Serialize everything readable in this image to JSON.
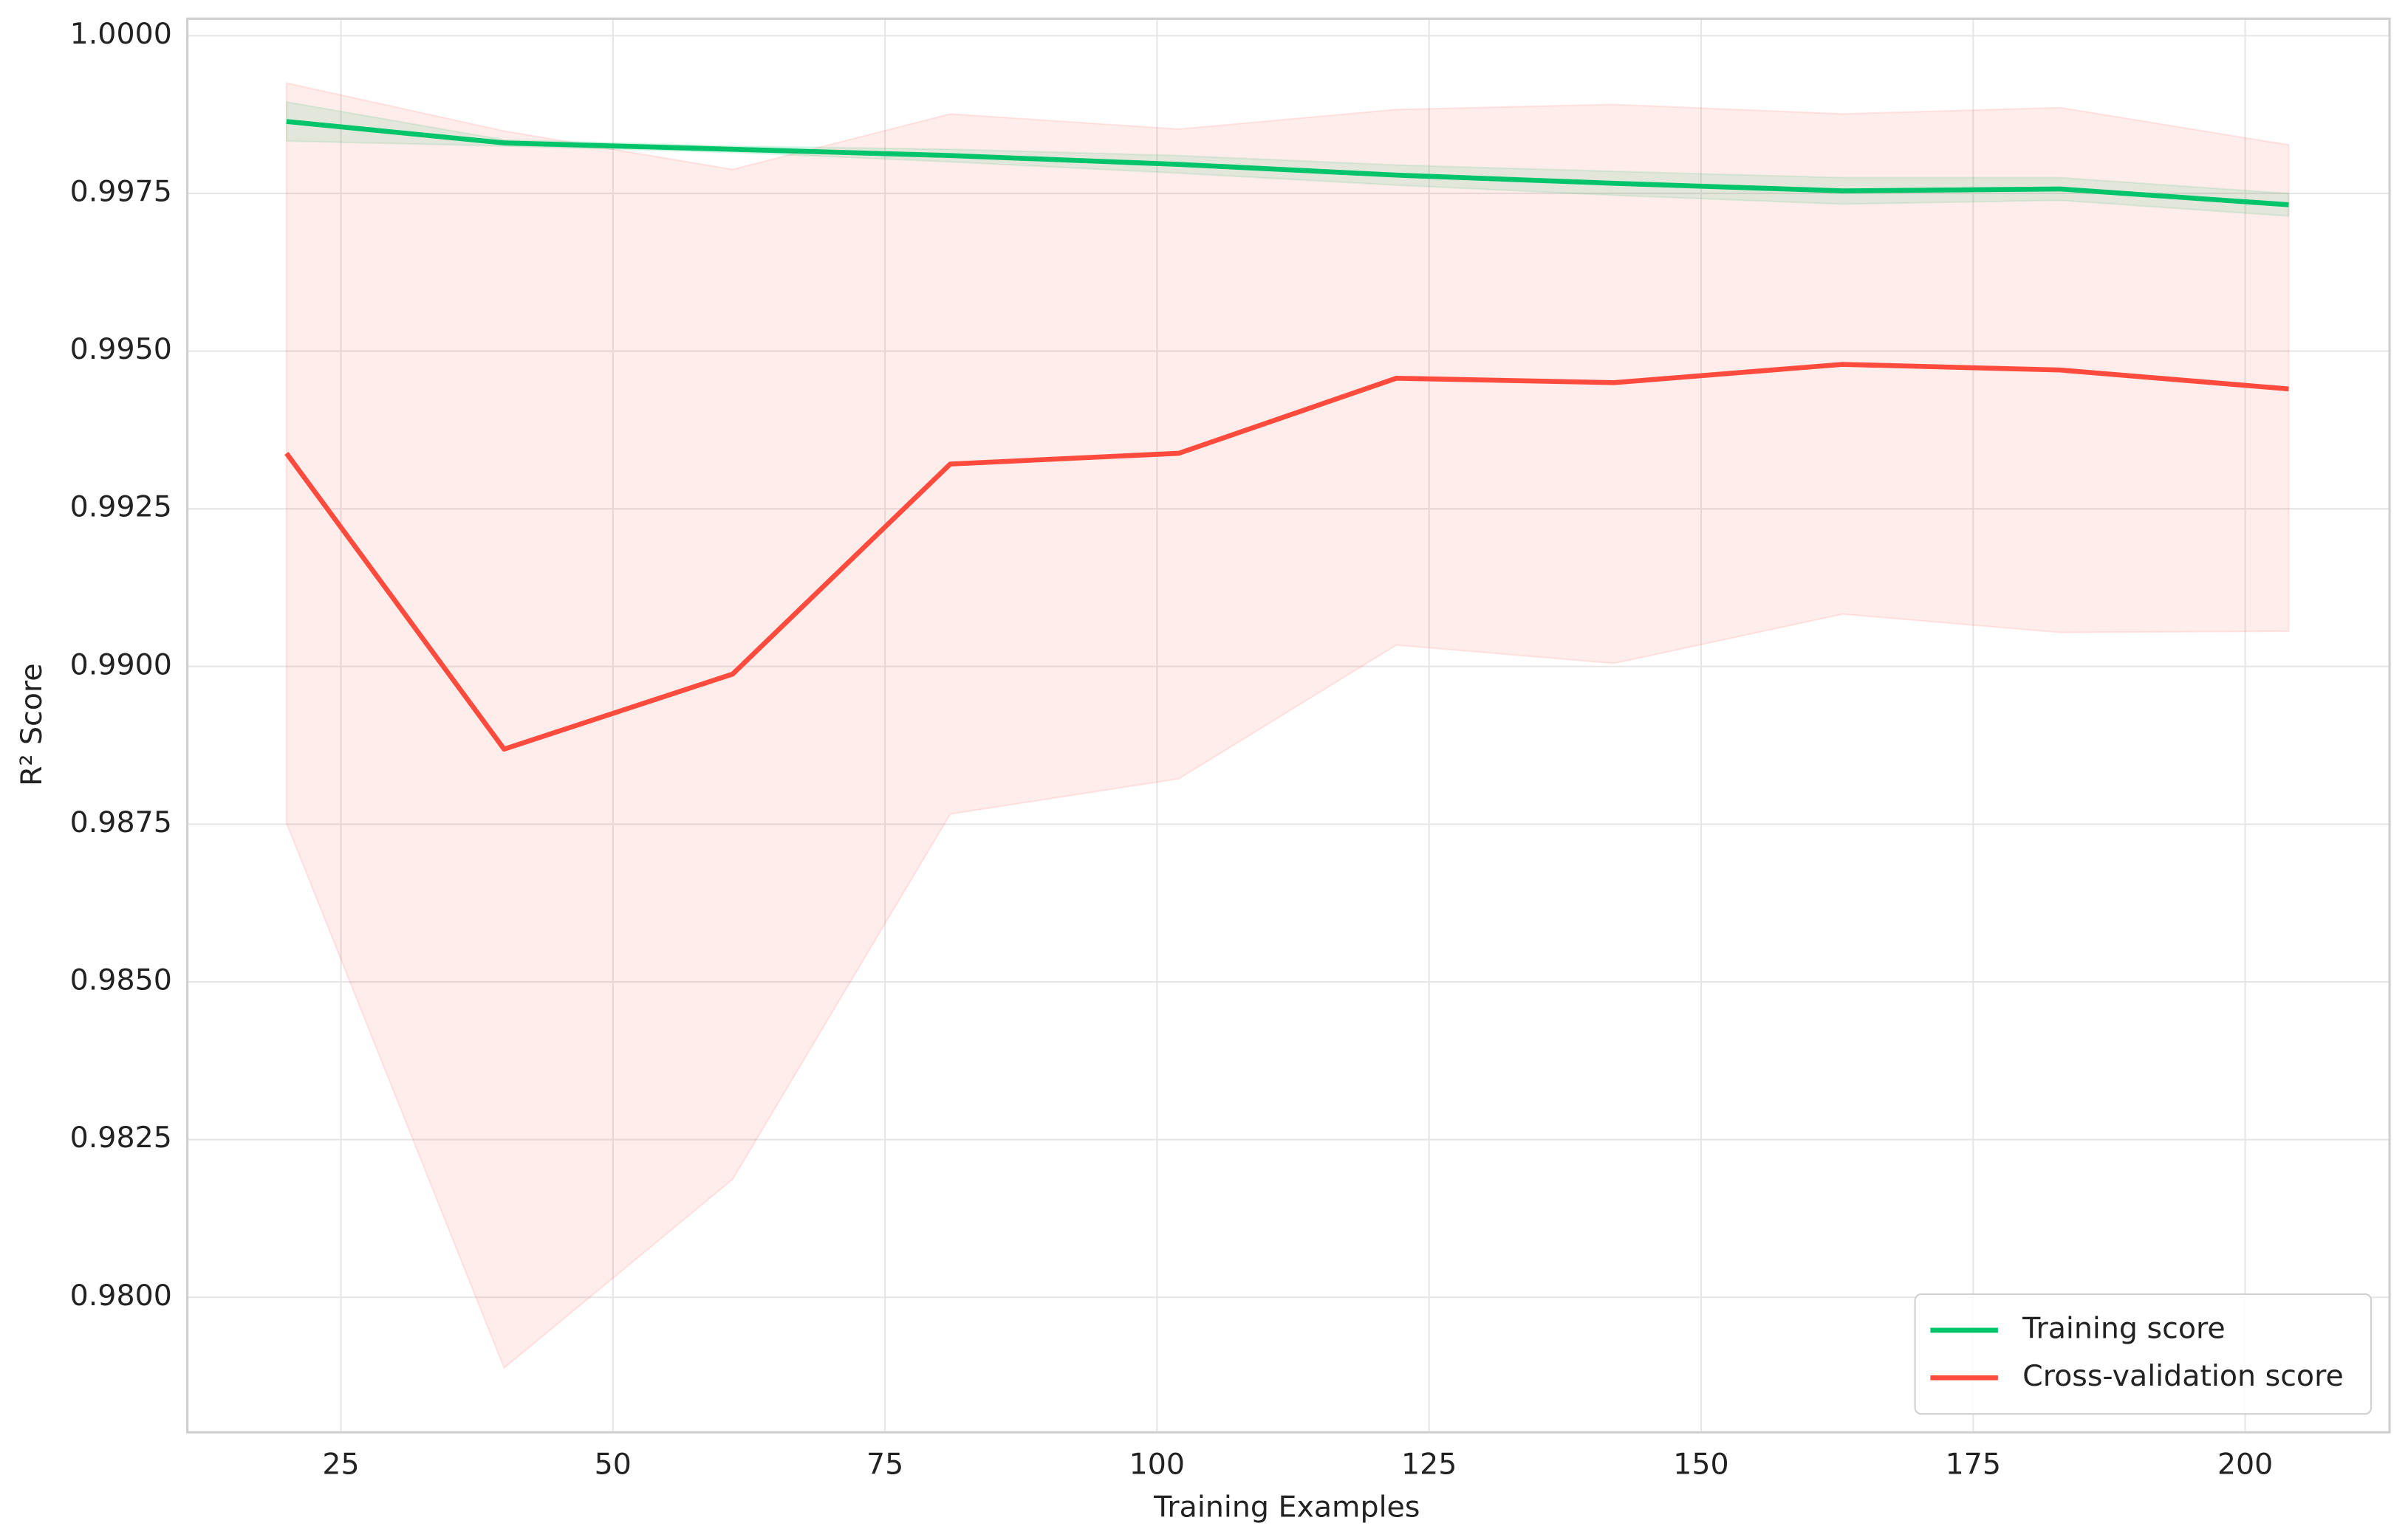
{
  "chart_data": {
    "type": "line",
    "xlabel": "Training Examples",
    "ylabel": "R² Score",
    "x": [
      20,
      40,
      61,
      81,
      102,
      122,
      142,
      163,
      183,
      204
    ],
    "series": [
      {
        "name": "Training score",
        "color": "#00c46a",
        "values": [
          0.99864,
          0.9983,
          0.9982,
          0.9981,
          0.99796,
          0.99779,
          0.99766,
          0.99754,
          0.99757,
          0.99732
        ],
        "upper": [
          0.99895,
          0.99835,
          0.99825,
          0.9982,
          0.9981,
          0.99795,
          0.99785,
          0.99775,
          0.99775,
          0.9975
        ],
        "lower": [
          0.99833,
          0.99825,
          0.99815,
          0.998,
          0.99782,
          0.99763,
          0.99747,
          0.99733,
          0.99739,
          0.99714
        ]
      },
      {
        "name": "Cross-validation score",
        "color": "#ff4b3e",
        "values": [
          0.99338,
          0.98869,
          0.98988,
          0.99321,
          0.99338,
          0.99457,
          0.9945,
          0.99479,
          0.9947,
          0.9944
        ],
        "upper": [
          0.99925,
          0.99849,
          0.99788,
          0.99876,
          0.99852,
          0.99883,
          0.99891,
          0.99876,
          0.99886,
          0.99827
        ],
        "lower": [
          0.98752,
          0.97888,
          0.98187,
          0.98766,
          0.98822,
          0.99034,
          0.99005,
          0.99083,
          0.99054,
          0.99056
        ]
      }
    ],
    "xlim": [
      10.89,
      213.27
    ],
    "ylim": [
      0.97786,
      1.00027
    ],
    "xticks": [
      25,
      50,
      75,
      100,
      125,
      150,
      175,
      200
    ],
    "yticks": [
      {
        "value": 0.98,
        "label": "0.9800"
      },
      {
        "value": 0.9825,
        "label": "0.9825"
      },
      {
        "value": 0.985,
        "label": "0.9850"
      },
      {
        "value": 0.9875,
        "label": "0.9875"
      },
      {
        "value": 0.99,
        "label": "0.9900"
      },
      {
        "value": 0.9925,
        "label": "0.9925"
      },
      {
        "value": 0.995,
        "label": "0.9950"
      },
      {
        "value": 0.9975,
        "label": "0.9975"
      },
      {
        "value": 1.0,
        "label": "1.0000"
      }
    ],
    "grid": true,
    "legend": "lower right"
  }
}
